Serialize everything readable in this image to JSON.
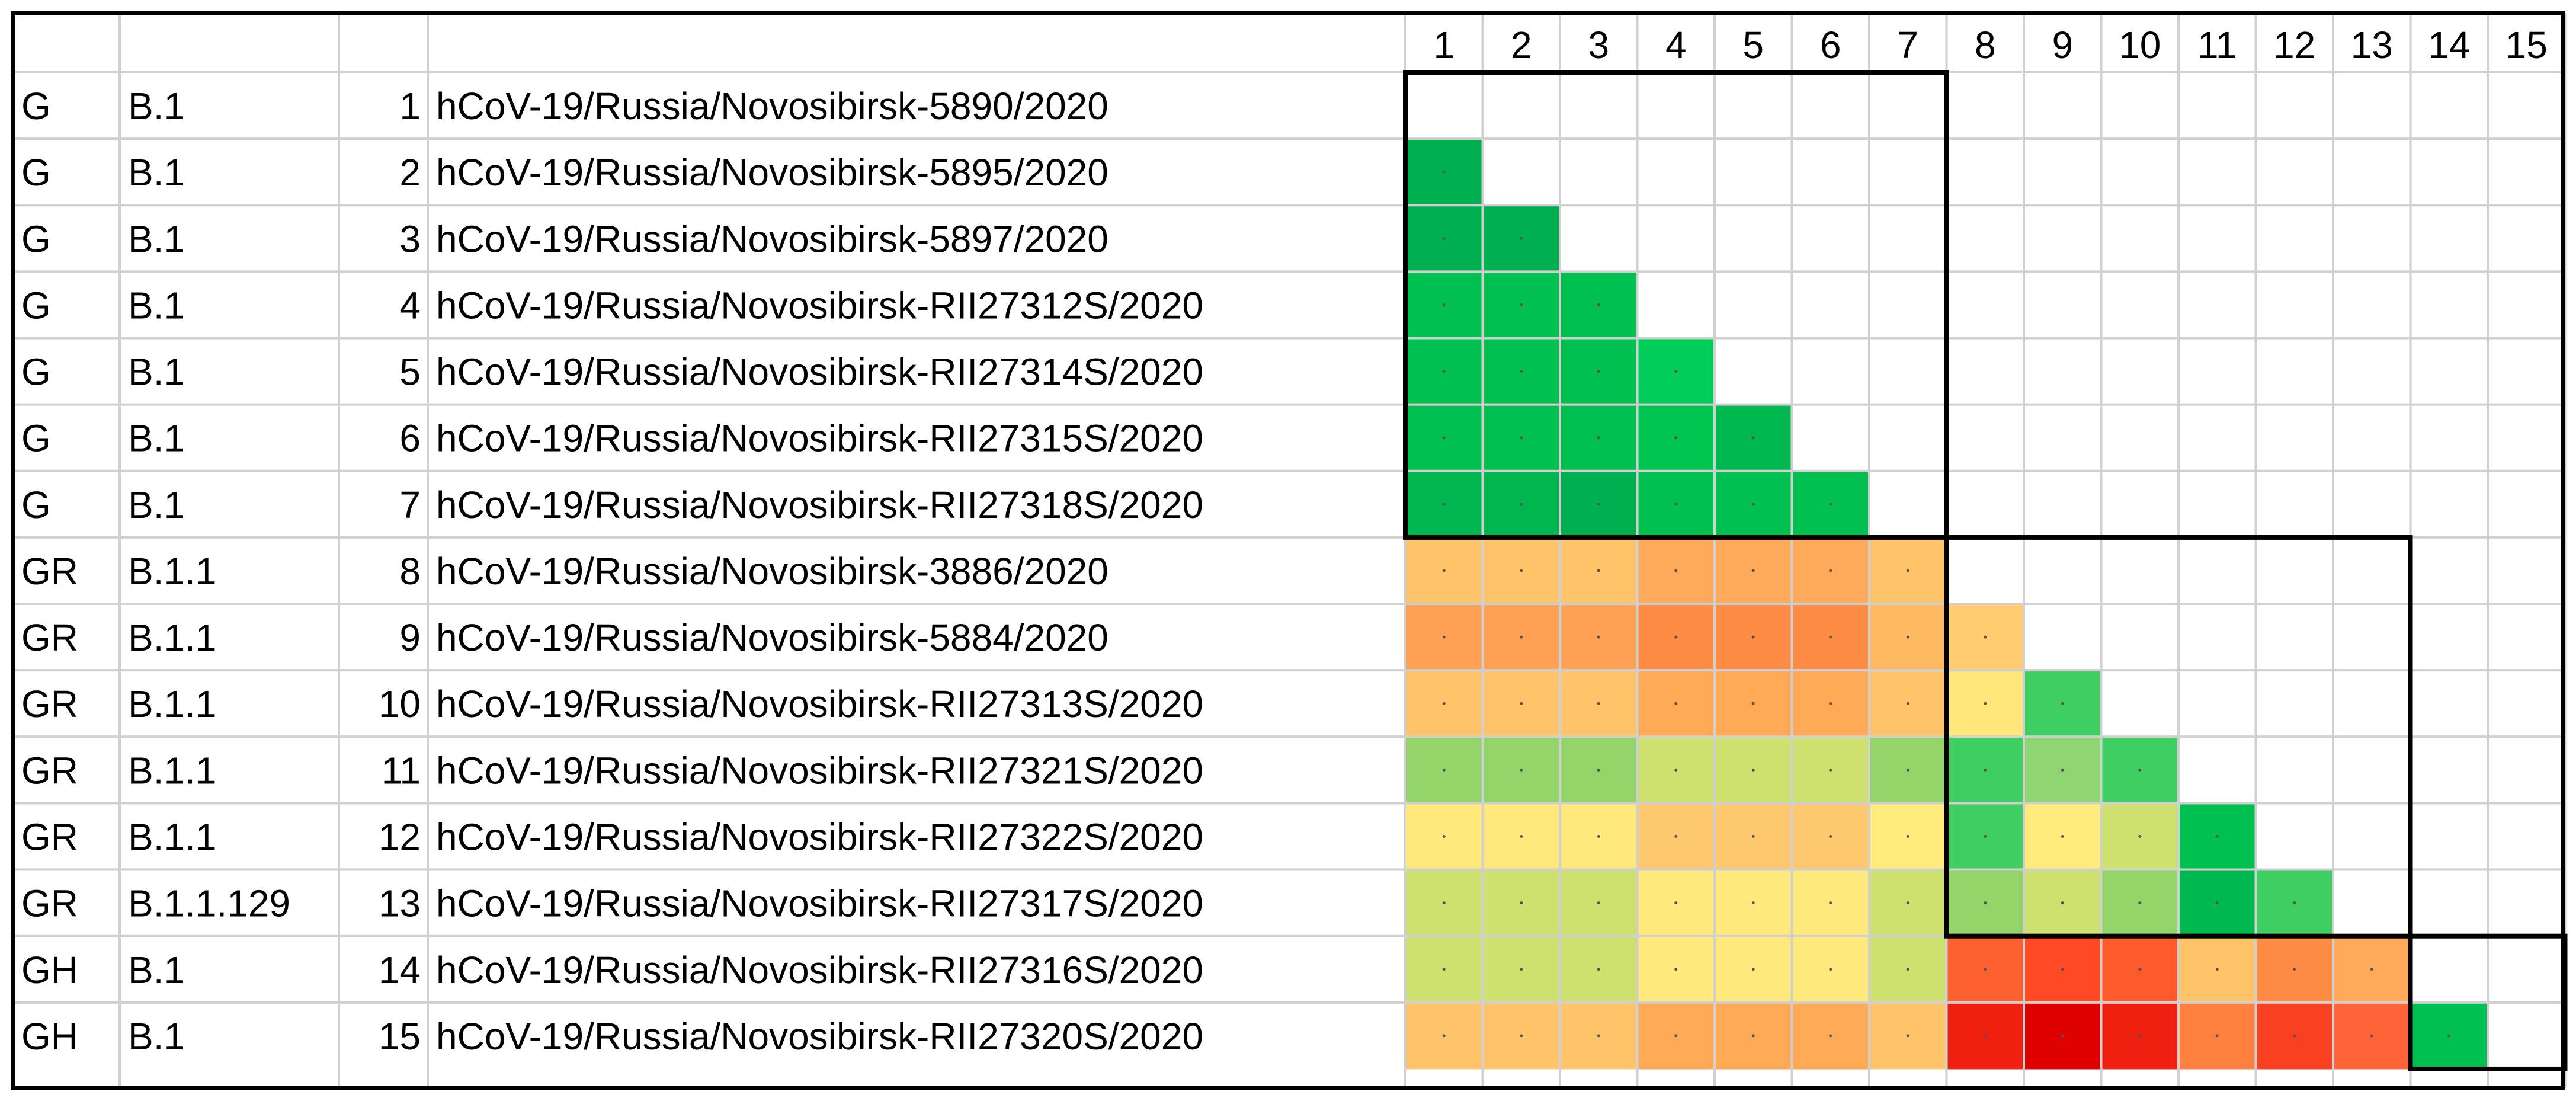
{
  "chart_data": {
    "type": "heatmap",
    "title": "",
    "column_labels": [
      "1",
      "2",
      "3",
      "4",
      "5",
      "6",
      "7",
      "8",
      "9",
      "10",
      "11",
      "12",
      "13",
      "14",
      "15"
    ],
    "rows": [
      {
        "clade": "G",
        "lineage": "B.1",
        "index": "1",
        "name": "hCoV-19/Russia/Novosibirsk-5890/2020"
      },
      {
        "clade": "G",
        "lineage": "B.1",
        "index": "2",
        "name": "hCoV-19/Russia/Novosibirsk-5895/2020"
      },
      {
        "clade": "G",
        "lineage": "B.1",
        "index": "3",
        "name": "hCoV-19/Russia/Novosibirsk-5897/2020"
      },
      {
        "clade": "G",
        "lineage": "B.1",
        "index": "4",
        "name": "hCoV-19/Russia/Novosibirsk-RII27312S/2020"
      },
      {
        "clade": "G",
        "lineage": "B.1",
        "index": "5",
        "name": "hCoV-19/Russia/Novosibirsk-RII27314S/2020"
      },
      {
        "clade": "G",
        "lineage": "B.1",
        "index": "6",
        "name": "hCoV-19/Russia/Novosibirsk-RII27315S/2020"
      },
      {
        "clade": "G",
        "lineage": "B.1",
        "index": "7",
        "name": "hCoV-19/Russia/Novosibirsk-RII27318S/2020"
      },
      {
        "clade": "GR",
        "lineage": "B.1.1",
        "index": "8",
        "name": "hCoV-19/Russia/Novosibirsk-3886/2020"
      },
      {
        "clade": "GR",
        "lineage": "B.1.1",
        "index": "9",
        "name": "hCoV-19/Russia/Novosibirsk-5884/2020"
      },
      {
        "clade": "GR",
        "lineage": "B.1.1",
        "index": "10",
        "name": "hCoV-19/Russia/Novosibirsk-RII27313S/2020"
      },
      {
        "clade": "GR",
        "lineage": "B.1.1",
        "index": "11",
        "name": "hCoV-19/Russia/Novosibirsk-RII27321S/2020"
      },
      {
        "clade": "GR",
        "lineage": "B.1.1",
        "index": "12",
        "name": "hCoV-19/Russia/Novosibirsk-RII27322S/2020"
      },
      {
        "clade": "GR",
        "lineage": "B.1.1.129",
        "index": "13",
        "name": "hCoV-19/Russia/Novosibirsk-RII27317S/2020"
      },
      {
        "clade": "GH",
        "lineage": "B.1",
        "index": "14",
        "name": "hCoV-19/Russia/Novosibirsk-RII27316S/2020"
      },
      {
        "clade": "GH",
        "lineage": "B.1",
        "index": "15",
        "name": "hCoV-19/Russia/Novosibirsk-RII27320S/2020"
      }
    ],
    "matrix_colors": [
      [],
      [
        "#00b050"
      ],
      [
        "#00b050",
        "#00b050"
      ],
      [
        "#00c050",
        "#00c050",
        "#00c050"
      ],
      [
        "#00c050",
        "#00c050",
        "#00c050",
        "#00cc5a"
      ],
      [
        "#00c050",
        "#00c050",
        "#00c050",
        "#00c450",
        "#00b850"
      ],
      [
        "#00b450",
        "#00b450",
        "#00b050",
        "#00c050",
        "#00c050",
        "#00c050"
      ],
      [
        "#ffc46a",
        "#ffc46a",
        "#ffc46a",
        "#ffaa5a",
        "#ffaa5a",
        "#ffaa5a",
        "#ffc46a"
      ],
      [
        "#ffa055",
        "#ffa055",
        "#ffa055",
        "#ff8c45",
        "#ff8c45",
        "#ff8c45",
        "#ffb860",
        "#ffcc70"
      ],
      [
        "#ffc46a",
        "#ffc46a",
        "#ffc46a",
        "#ffa855",
        "#ffa855",
        "#ffa855",
        "#ffc46a",
        "#ffe77c",
        "#3ece62"
      ],
      [
        "#92d46a",
        "#92d46a",
        "#92d46a",
        "#cee070",
        "#cee070",
        "#cee070",
        "#92d46a",
        "#3ece62",
        "#8ed470",
        "#3ece62"
      ],
      [
        "#ffe87c",
        "#ffe87c",
        "#ffe87c",
        "#ffc870",
        "#ffc870",
        "#ffc870",
        "#ffec7c",
        "#3ece62",
        "#ffec7c",
        "#cee070",
        "#00c050"
      ],
      [
        "#cee070",
        "#cee070",
        "#cee070",
        "#ffe87c",
        "#ffe87c",
        "#ffe87c",
        "#cee070",
        "#92d46a",
        "#cee070",
        "#92d46a",
        "#00b850",
        "#3ece62"
      ],
      [
        "#cee070",
        "#cee070",
        "#cee070",
        "#ffe87c",
        "#ffe87c",
        "#ffe87c",
        "#cee070",
        "#ff6030",
        "#ff4a24",
        "#ff5a2c",
        "#ffc46a",
        "#ff8c45",
        "#ffaa5a"
      ],
      [
        "#ffc46a",
        "#ffc46a",
        "#ffc46a",
        "#ffa855",
        "#ffa855",
        "#ffa855",
        "#ffc46a",
        "#ee2010",
        "#e00000",
        "#ee2012",
        "#ff8040",
        "#f84020",
        "#ff6438",
        "#00c050"
      ]
    ],
    "clusters": [
      {
        "from": 1,
        "to": 7
      },
      {
        "from": 8,
        "to": 13
      },
      {
        "from": 14,
        "to": 15
      }
    ],
    "grid_color": "#d0d0d0",
    "border_color": "#000000"
  }
}
